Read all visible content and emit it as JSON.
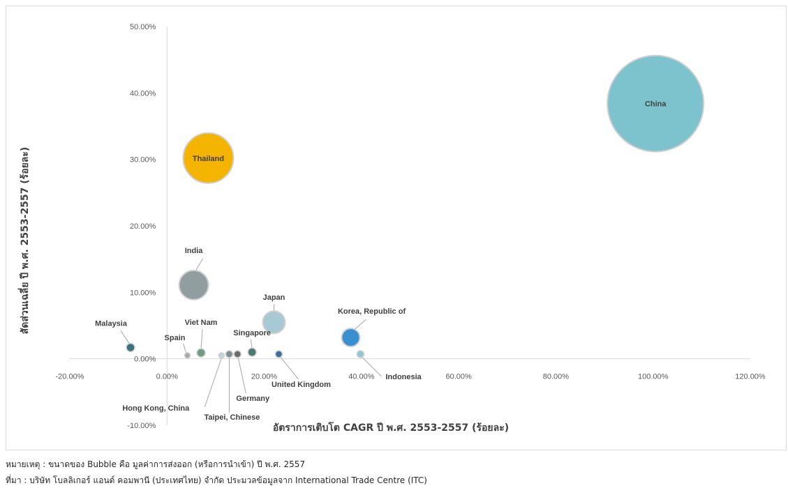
{
  "chart_data": {
    "type": "scatter",
    "subtype": "bubble",
    "xlabel": "อัตราการเติบโต CAGR ปี พ.ศ. 2553-2557 (ร้อยละ)",
    "ylabel": "สัดส่วนเฉลี่ย ปี พ.ศ. 2553-2557 (ร้อยละ)",
    "xlim": [
      -0.2,
      1.2
    ],
    "ylim": [
      -0.1,
      0.5
    ],
    "x_ticks": [
      -0.2,
      0,
      0.2,
      0.4,
      0.6,
      0.8,
      1.0,
      1.2
    ],
    "x_tick_labels": [
      "-20.00%",
      "0.00%",
      "20.00%",
      "40.00%",
      "60.00%",
      "80.00%",
      "100.00%",
      "120.00%"
    ],
    "y_ticks": [
      -0.1,
      0,
      0.1,
      0.2,
      0.3,
      0.4,
      0.5
    ],
    "y_tick_labels": [
      "-10.00%",
      "0.00%",
      "10.00%",
      "20.00%",
      "30.00%",
      "40.00%",
      "50.00%"
    ],
    "grid": false,
    "legend": "none",
    "points": [
      {
        "label": "China",
        "x": 1.005,
        "y": 0.384,
        "size": 69,
        "color": "#7cc3cd",
        "label_pos": "inside"
      },
      {
        "label": "Thailand",
        "x": 0.085,
        "y": 0.302,
        "size": 36,
        "color": "#f5b400",
        "label_pos": "inside"
      },
      {
        "label": "India",
        "x": 0.055,
        "y": 0.111,
        "size": 21,
        "color": "#909e9f",
        "label_pos": "above"
      },
      {
        "label": "Japan",
        "x": 0.22,
        "y": 0.055,
        "size": 16,
        "color": "#a6c9d3",
        "label_pos": "above"
      },
      {
        "label": "Korea, Republic of",
        "x": 0.378,
        "y": 0.032,
        "size": 13,
        "color": "#3a8fd0",
        "label_pos": "above-right"
      },
      {
        "label": "Malaysia",
        "x": -0.075,
        "y": 0.017,
        "size": 6,
        "color": "#3d6f7c",
        "label_pos": "above-left"
      },
      {
        "label": "Viet Nam",
        "x": 0.07,
        "y": 0.009,
        "size": 6,
        "color": "#6f9d82",
        "label_pos": "above"
      },
      {
        "label": "Singapore",
        "x": 0.175,
        "y": 0.01,
        "size": 6,
        "color": "#4a7a70",
        "label_pos": "above"
      },
      {
        "label": "Spain",
        "x": 0.042,
        "y": 0.005,
        "size": 4,
        "color": "#a8a8a8",
        "label_pos": "above-left"
      },
      {
        "label": "Hong Kong, China",
        "x": 0.112,
        "y": 0.005,
        "size": 4,
        "color": "#bad6dd",
        "label_pos": "below-left"
      },
      {
        "label": "Taipei, Chinese",
        "x": 0.128,
        "y": 0.007,
        "size": 5,
        "color": "#7c8f94",
        "label_pos": "below"
      },
      {
        "label": "Germany",
        "x": 0.145,
        "y": 0.007,
        "size": 5,
        "color": "#6b6b6b",
        "label_pos": "below"
      },
      {
        "label": "United Kingdom",
        "x": 0.23,
        "y": 0.007,
        "size": 5,
        "color": "#3e6e96",
        "label_pos": "below-right"
      },
      {
        "label": "Indonesia",
        "x": 0.398,
        "y": 0.007,
        "size": 5,
        "color": "#8ec8d6",
        "label_pos": "right"
      }
    ]
  },
  "notes": {
    "remark": "หมายเหตุ : ขนาดของ Bubble คือ มูลค่าการส่งออก (หรือการนำเข้า) ปี พ.ศ. 2557",
    "source": "ที่มา : บริษัท โบลลิเกอร์ แอนด์ คอมพานี (ประเทศไทย) จำกัด ประมวลข้อมูลจาก International Trade Centre (ITC)"
  }
}
